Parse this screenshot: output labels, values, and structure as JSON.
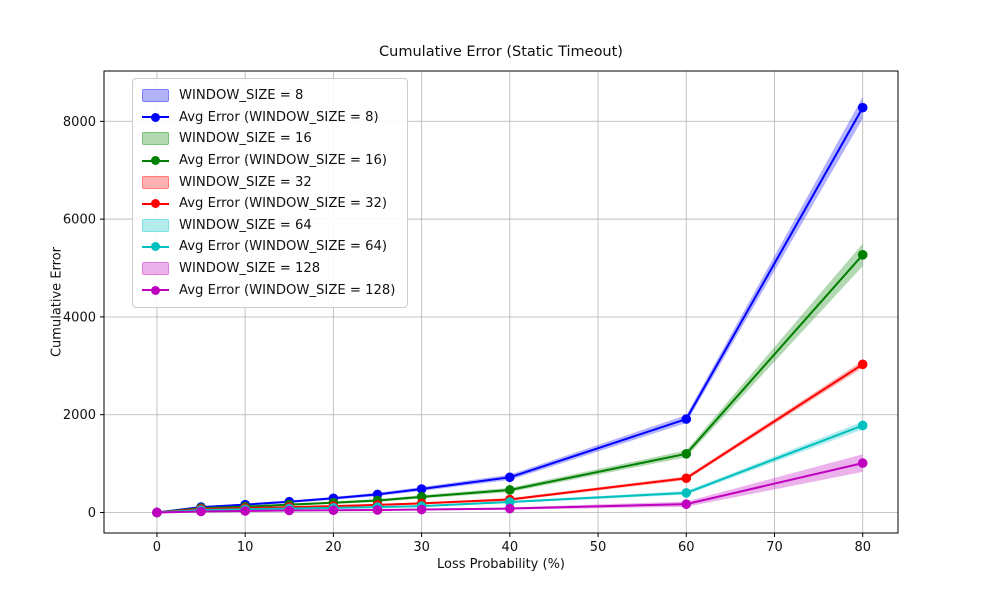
{
  "chart_data": {
    "type": "line",
    "title": "Cumulative Error (Static Timeout)",
    "xlabel": "Loss Probability (%)",
    "ylabel": "Cumulative Error",
    "x": [
      0,
      5,
      10,
      15,
      20,
      25,
      30,
      40,
      60,
      80
    ],
    "xticks": [
      0,
      10,
      20,
      30,
      40,
      50,
      60,
      70,
      80
    ],
    "yticks": [
      0,
      2000,
      4000,
      6000,
      8000
    ],
    "xlim": [
      -6,
      84
    ],
    "ylim": [
      -420,
      9030
    ],
    "grid": true,
    "legend_position": "upper left",
    "series": [
      {
        "window_size": 8,
        "band_label": "WINDOW_SIZE = 8",
        "label": "Avg Error (WINDOW_SIZE = 8)",
        "color": "#0000ff",
        "band_color": "rgba(0,0,255,0.3)",
        "values": [
          0,
          110,
          160,
          220,
          290,
          370,
          480,
          720,
          1910,
          8280
        ],
        "band_lower": [
          0,
          95,
          140,
          195,
          260,
          335,
          440,
          665,
          1830,
          8055
        ],
        "band_upper": [
          0,
          125,
          180,
          245,
          320,
          405,
          520,
          775,
          1990,
          8500
        ]
      },
      {
        "window_size": 16,
        "band_label": "WINDOW_SIZE = 16",
        "label": "Avg Error (WINDOW_SIZE = 16)",
        "color": "#008000",
        "band_color": "rgba(0,128,0,0.3)",
        "values": [
          0,
          90,
          120,
          160,
          200,
          245,
          320,
          460,
          1200,
          5270
        ],
        "band_lower": [
          0,
          78,
          105,
          140,
          175,
          215,
          285,
          415,
          1130,
          5040
        ],
        "band_upper": [
          0,
          102,
          135,
          180,
          225,
          275,
          355,
          505,
          1270,
          5500
        ]
      },
      {
        "window_size": 32,
        "band_label": "WINDOW_SIZE = 32",
        "label": "Avg Error (WINDOW_SIZE = 32)",
        "color": "#ff0000",
        "band_color": "rgba(255,0,0,0.3)",
        "values": [
          0,
          70,
          90,
          110,
          130,
          155,
          185,
          265,
          700,
          3030
        ],
        "band_lower": [
          0,
          62,
          80,
          97,
          114,
          137,
          163,
          237,
          662,
          2960
        ],
        "band_upper": [
          0,
          78,
          100,
          123,
          146,
          173,
          207,
          293,
          738,
          3100
        ]
      },
      {
        "window_size": 64,
        "band_label": "WINDOW_SIZE = 64",
        "label": "Avg Error (WINDOW_SIZE = 64)",
        "color": "#00bfbf",
        "band_color": "rgba(0,191,191,0.3)",
        "values": [
          0,
          50,
          65,
          80,
          95,
          110,
          130,
          215,
          400,
          1780
        ],
        "band_lower": [
          0,
          44,
          57,
          70,
          83,
          95,
          112,
          192,
          362,
          1700
        ],
        "band_upper": [
          0,
          56,
          73,
          90,
          107,
          125,
          148,
          238,
          438,
          1860
        ]
      },
      {
        "window_size": 128,
        "band_label": "WINDOW_SIZE = 128",
        "label": "Avg Error (WINDOW_SIZE = 128)",
        "color": "#bf00bf",
        "band_color": "rgba(191,0,191,0.3)",
        "values": [
          0,
          20,
          30,
          40,
          45,
          50,
          60,
          80,
          170,
          1010
        ],
        "band_lower": [
          0,
          14,
          22,
          30,
          33,
          36,
          44,
          57,
          115,
          830
        ],
        "band_upper": [
          0,
          26,
          38,
          50,
          57,
          64,
          76,
          103,
          225,
          1190
        ]
      }
    ]
  }
}
